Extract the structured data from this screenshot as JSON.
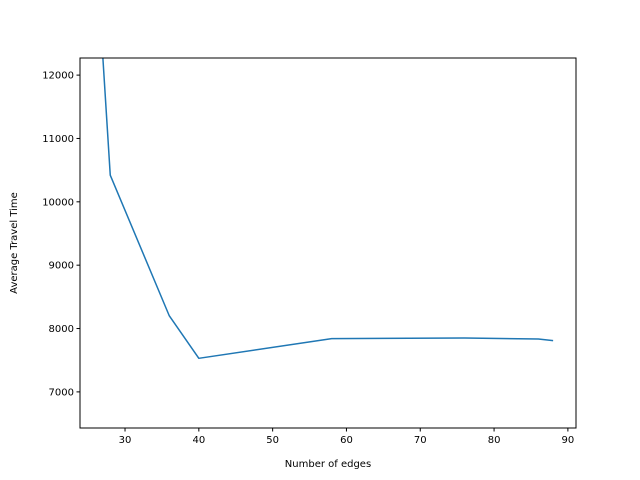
{
  "chart_data": {
    "type": "line",
    "title": "",
    "xlabel": "Number of edges",
    "ylabel": "Average Travel Time",
    "xlim": [
      23.9,
      91.1
    ],
    "ylim": [
      6430,
      12270
    ],
    "xticks": [
      30,
      40,
      50,
      60,
      70,
      80,
      90
    ],
    "yticks": [
      7000,
      8000,
      9000,
      10000,
      11000,
      12000
    ],
    "grid": false,
    "legend": "none",
    "series": [
      {
        "color": "#1f77b4",
        "x": [
          27,
          28,
          36,
          40,
          58,
          76,
          86,
          88
        ],
        "y": [
          12270,
          10420,
          8200,
          7530,
          7840,
          7850,
          7835,
          7810
        ]
      }
    ]
  }
}
